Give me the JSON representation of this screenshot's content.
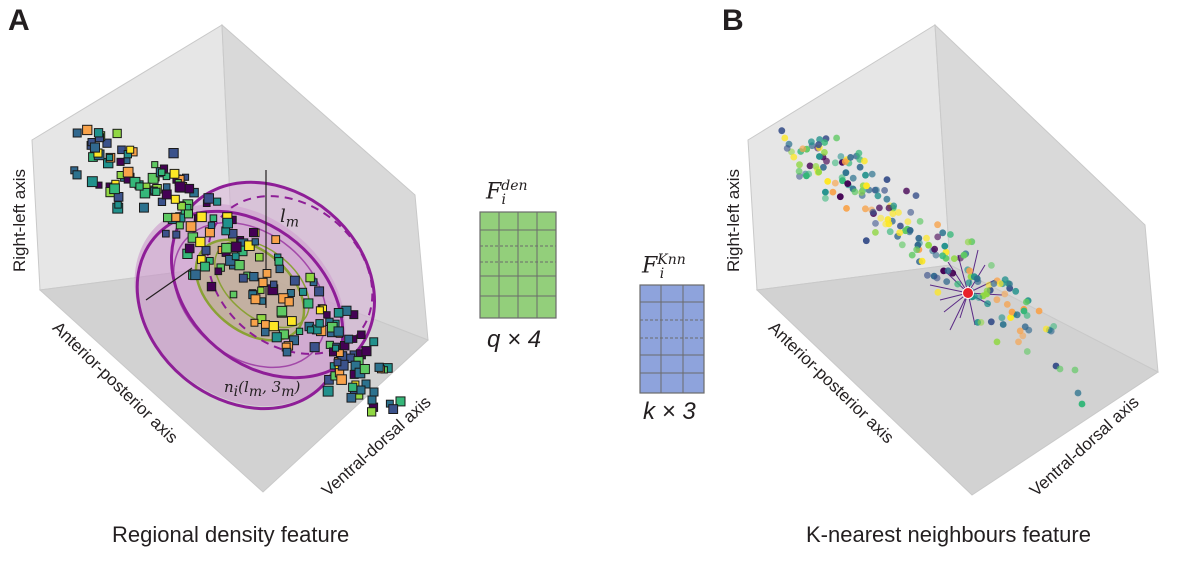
{
  "panel_a": {
    "letter": "A",
    "caption": "Regional density feature",
    "axes": {
      "right_left": "Right-left axis",
      "anterior_posterior": "Anterior-posterior axis",
      "ventral_dorsal": "Ventral-dorsal axis"
    },
    "annotations": {
      "length": "l",
      "length_sub": "m",
      "region": "n",
      "region_sub": "i",
      "region_args": "(l",
      "region_args_sub": "m",
      "region_args_tail": ", 3",
      "region_args_tail_sub": "m",
      "region_close": ")"
    }
  },
  "feature_den": {
    "symbol": "F",
    "superscript": "den",
    "subscript": "i",
    "dims": "q × 4",
    "color": "#93cf7b"
  },
  "feature_knn": {
    "symbol": "F",
    "superscript": "Knn",
    "subscript": "i",
    "dims": "k × 3",
    "color": "#8ea3dc"
  },
  "panel_b": {
    "letter": "B",
    "caption": "K-nearest neighbours feature",
    "axes": {
      "right_left": "Right-left axis",
      "anterior_posterior": "Anterior-posterior axis",
      "ventral_dorsal": "Ventral-dorsal axis"
    },
    "query_point_color": "#e8202a"
  },
  "colors": {
    "pane": "#dcdcdc",
    "ellipse": "#8e1e97",
    "inner_ellipse": "#8aa135"
  }
}
